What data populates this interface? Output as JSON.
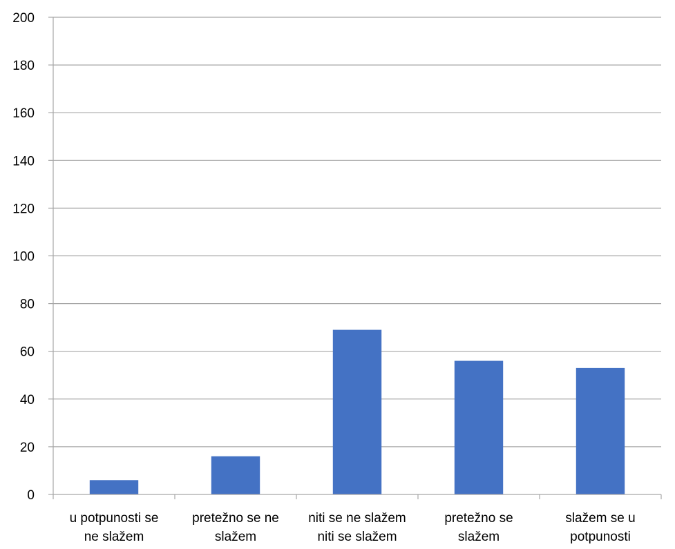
{
  "chart_data": {
    "type": "bar",
    "categories": [
      [
        "u potpunosti se",
        "ne slažem"
      ],
      [
        "pretežno se ne",
        "slažem"
      ],
      [
        "niti se ne slažem",
        "niti se slažem"
      ],
      [
        "pretežno se",
        "slažem"
      ],
      [
        "slažem se u",
        "potpunosti"
      ]
    ],
    "values": [
      6,
      16,
      69,
      56,
      53
    ],
    "ylim": [
      0,
      200
    ],
    "yticks": [
      0,
      20,
      40,
      60,
      80,
      100,
      120,
      140,
      160,
      180,
      200
    ],
    "grid": true,
    "legend": "none",
    "colors": {
      "bar": "#4472C4",
      "grid": "#A6A6A6",
      "axis": "#A6A6A6"
    }
  }
}
